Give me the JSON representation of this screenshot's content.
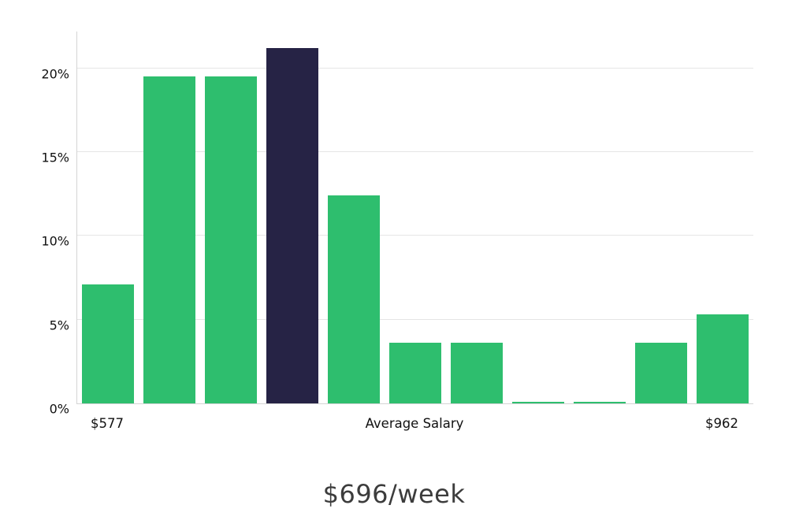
{
  "chart_data": {
    "type": "bar",
    "title": "$696/week",
    "xlabel": "",
    "ylabel": "",
    "x_axis_labels": {
      "left": "$577",
      "center": "Average Salary",
      "right": "$962"
    },
    "values": [
      7.1,
      19.5,
      19.5,
      21.2,
      12.4,
      3.6,
      3.6,
      0.1,
      0.1,
      3.6,
      5.3
    ],
    "highlight_index": 3,
    "bar_color": "#2ebe6e",
    "highlight_color": "#262345",
    "yticks": [
      0,
      5,
      10,
      15,
      20
    ],
    "ytick_labels": [
      "0%",
      "5%",
      "10%",
      "15%",
      "20%"
    ],
    "ylim": [
      0,
      22.2
    ],
    "grid": true,
    "legend": false,
    "gridline_color": "#e5e5e5"
  }
}
